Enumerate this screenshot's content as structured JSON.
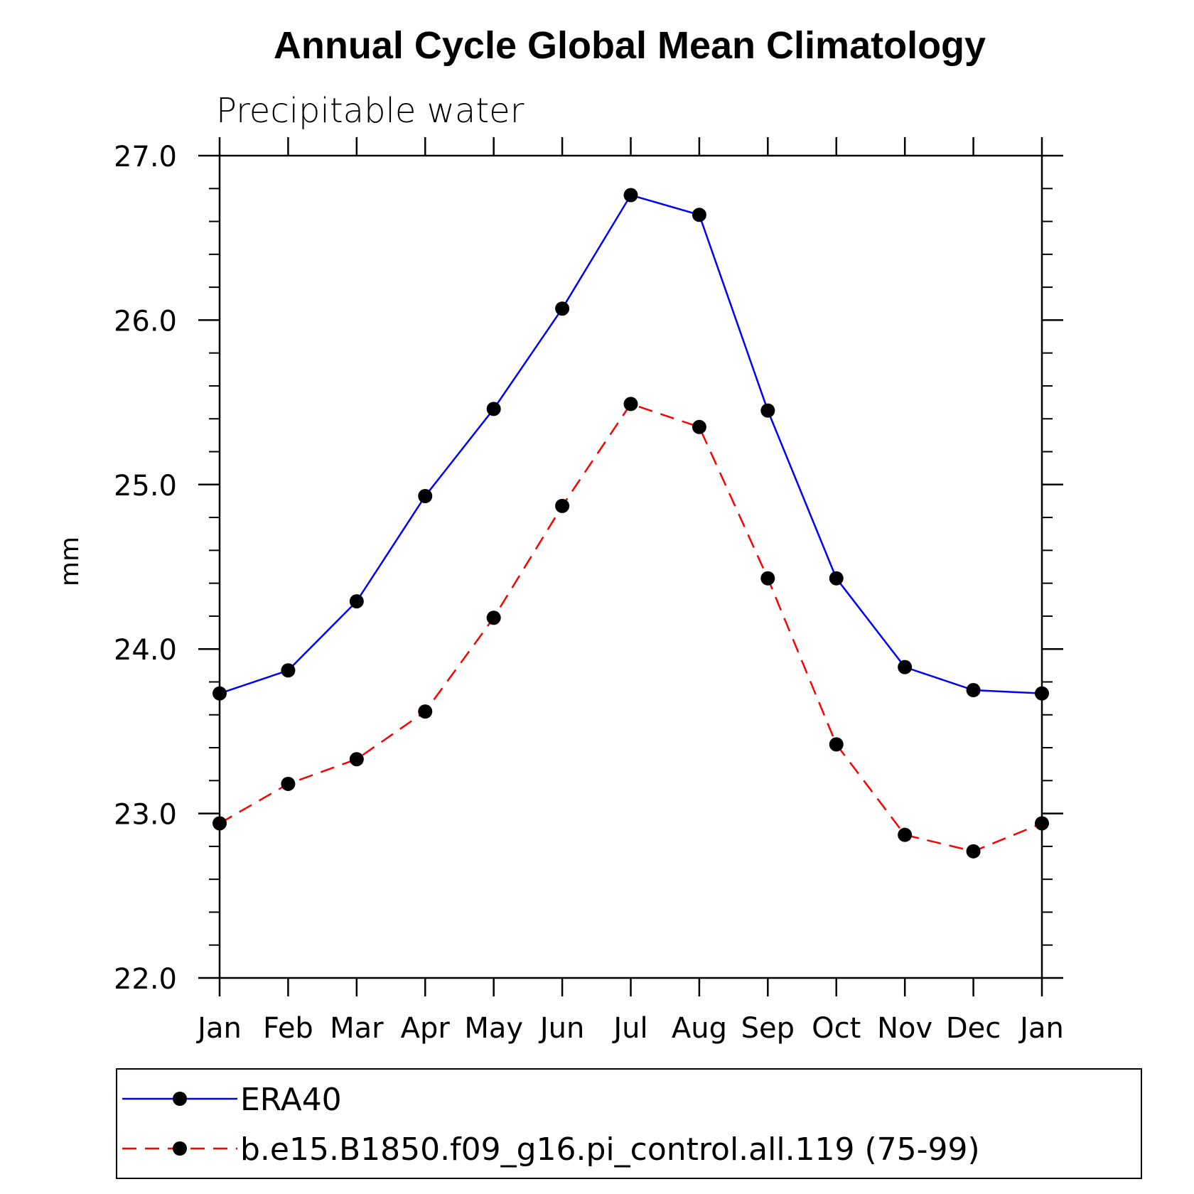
{
  "chart_data": {
    "type": "line",
    "title": "Annual Cycle Global Mean Climatology",
    "subtitle": "Precipitable water",
    "xlabel": "",
    "ylabel": "mm",
    "categories": [
      "Jan",
      "Feb",
      "Mar",
      "Apr",
      "May",
      "Jun",
      "Jul",
      "Aug",
      "Sep",
      "Oct",
      "Nov",
      "Dec",
      "Jan"
    ],
    "ylim": [
      22.0,
      27.0
    ],
    "yticks": [
      "22.0",
      "23.0",
      "24.0",
      "25.0",
      "26.0",
      "27.0"
    ],
    "grid": false,
    "legend_position": "bottom",
    "series": [
      {
        "name": "ERA40",
        "color": "#0000ff",
        "dash": "solid",
        "marker": "filled-circle",
        "values": [
          23.73,
          23.87,
          24.29,
          24.93,
          25.46,
          26.07,
          26.76,
          26.64,
          25.45,
          24.43,
          23.89,
          23.75,
          23.73
        ]
      },
      {
        "name": "b.e15.B1850.f09_g16.pi_control.all.119 (75-99)",
        "color": "#ff0000",
        "dash": "dashed",
        "marker": "filled-circle",
        "values": [
          22.94,
          23.18,
          23.33,
          23.62,
          24.19,
          24.87,
          25.49,
          25.35,
          24.43,
          23.42,
          22.87,
          22.77,
          22.94
        ]
      }
    ]
  }
}
